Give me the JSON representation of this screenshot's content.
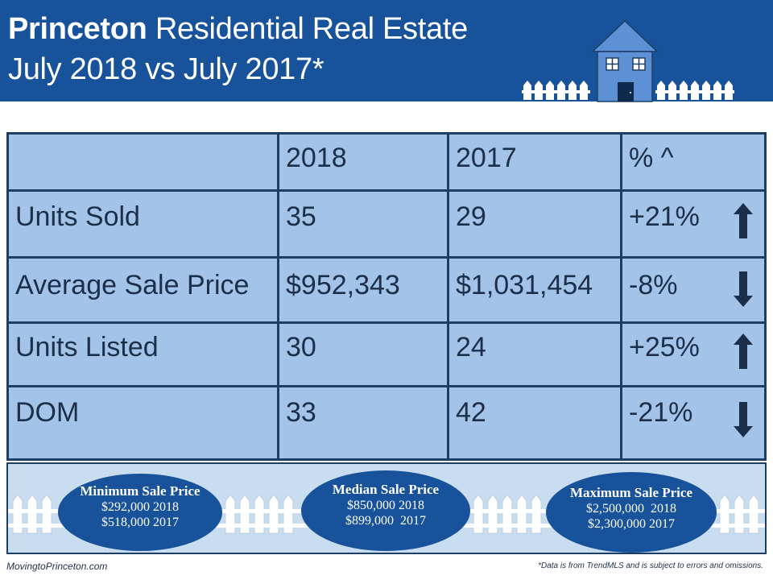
{
  "header": {
    "title_bold": "Princeton",
    "title_rest": " Residential Real Estate",
    "subtitle": "July 2018 vs July 2017*"
  },
  "table": {
    "columns": [
      "",
      "2018",
      "2017",
      "% ^"
    ],
    "rows": [
      {
        "label": "Units Sold",
        "v2018": "35",
        "v2017": "29",
        "pct": "+21%",
        "trend": "up"
      },
      {
        "label": "Average Sale Price",
        "v2018": "$952,343",
        "v2017": "$1,031,454",
        "pct": "-8%",
        "trend": "down"
      },
      {
        "label": "Units Listed",
        "v2018": "30",
        "v2017": "24",
        "pct": "+25%",
        "trend": "up"
      },
      {
        "label": "DOM",
        "v2018": "33",
        "v2017": "42",
        "pct": "-21%",
        "trend": "down"
      }
    ]
  },
  "summary": {
    "minimum": {
      "title": "Minimum Sale Price",
      "line1": "$292,000 2018",
      "line2": "$518,000 2017"
    },
    "median": {
      "title": "Median Sale Price",
      "line1": "$850,000 2018",
      "line2": "$899,000  2017"
    },
    "maximum": {
      "title": "Maximum Sale Price",
      "line1": "$2,500,000  2018",
      "line2": "$2,300,000 2017"
    }
  },
  "footer": {
    "website": "MovingtoPrinceton.com",
    "disclaimer": "*Data is from TrendMLS and is subject to errors and omissions."
  },
  "colors": {
    "brand_blue": "#17529a",
    "table_fill": "#a4c3e8",
    "border": "#1d3f63",
    "house": "#5e90d6"
  }
}
